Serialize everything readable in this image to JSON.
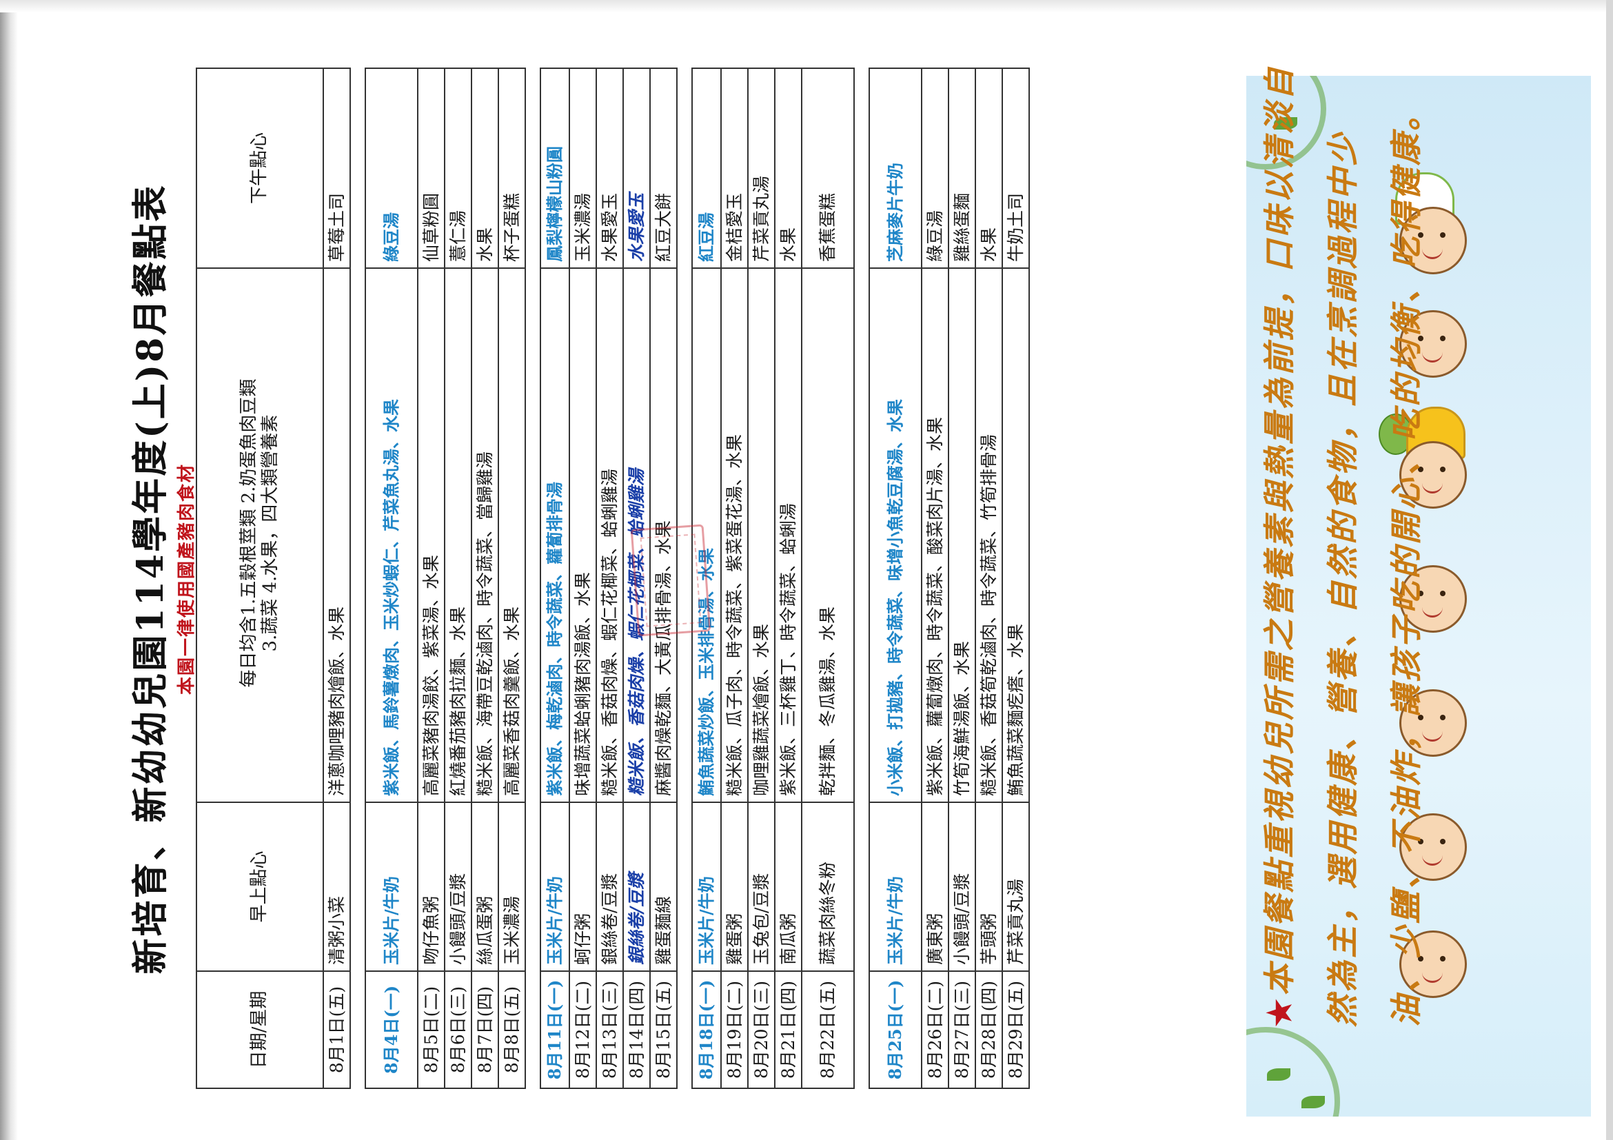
{
  "title": "新培育、新幼幼兒園114學年度(上)8月餐點表",
  "notice": "本園一律使用國產豬肉食材",
  "header": {
    "date_col": "日期/星期",
    "morning_col": "早上點心",
    "lunch_line1": "每日均含1.五穀根莖類 2.奶蛋魚肉豆類",
    "lunch_line2": "3.蔬菜 4.水果，四大類營養素",
    "afternoon_col": "下午點心"
  },
  "rows": [
    {
      "date": "8月1日(五)",
      "morning": "清粥小菜",
      "lunch": "洋蔥咖哩豬肉燴飯、水果",
      "afternoon": "草莓土司"
    },
    {
      "date": "8月4日(一)",
      "morning": "玉米片/牛奶",
      "lunch": "紫米飯、馬鈴薯燉肉、玉米炒蝦仁、芹菜魚丸湯、水果",
      "afternoon": "綠豆湯",
      "monday": true
    },
    {
      "date": "8月5日(二)",
      "morning": "吻仔魚粥",
      "lunch": "高麗菜豬肉湯餃、紫菜湯、水果",
      "afternoon": "仙草粉圓"
    },
    {
      "date": "8月6日(三)",
      "morning": "小饅頭/豆漿",
      "lunch": "紅燒番茄豬肉拉麵、水果",
      "afternoon": "薏仁湯"
    },
    {
      "date": "8月7日(四)",
      "morning": "絲瓜蛋粥",
      "lunch": "糙米飯、海帶豆乾滷肉、時令蔬菜、當歸雞湯",
      "afternoon": "水果"
    },
    {
      "date": "8月8日(五)",
      "morning": "玉米濃湯",
      "lunch": "高麗菜香菇肉羹飯、水果",
      "afternoon": "杯子蛋糕"
    },
    {
      "date": "8月11日(一)",
      "morning": "玉米片/牛奶",
      "lunch": "紫米飯、梅乾滷肉、時令蔬菜、蘿蔔排骨湯",
      "afternoon": "鳳梨檸檬山粉圓",
      "monday": true
    },
    {
      "date": "8月12日(二)",
      "morning": "蚵仔粥",
      "lunch": "味增蔬菜蛤蜊豬肉湯飯、水果",
      "afternoon": "玉米濃湯"
    },
    {
      "date": "8月13日(三)",
      "morning": "銀絲卷/豆漿",
      "lunch": "糙米飯、香菇肉燥、蝦仁花椰菜、蛤蜊雞湯",
      "afternoon": "水果愛玉"
    },
    {
      "date": "8月14日(四)",
      "morning": "銀絲卷/豆漿",
      "lunch": "糙米飯、香菇肉燥、蝦仁花椰菜、蛤蜊雞湯",
      "afternoon": "水果愛玉",
      "handwritten": true
    },
    {
      "date": "8月15日(五)",
      "morning": "雞蛋麵線",
      "lunch": "麻醬肉燥乾麵、大黃瓜排骨湯、水果",
      "afternoon": "紅豆大餅"
    },
    {
      "date": "8月18日(一)",
      "morning": "玉米片/牛奶",
      "lunch": "鮪魚蔬菜炒飯、玉米排骨湯、水果",
      "afternoon": "紅豆湯",
      "monday": true
    },
    {
      "date": "8月19日(二)",
      "morning": "雞蛋粥",
      "lunch": "糙米飯、瓜子肉、時令蔬菜、紫菜蛋花湯、水果",
      "afternoon": "金桔愛玉"
    },
    {
      "date": "8月20日(三)",
      "morning": "玉兔包/豆漿",
      "lunch": "咖哩雞蔬菜燴飯、水果",
      "afternoon": "芹菜貢丸湯"
    },
    {
      "date": "8月21日(四)",
      "morning": "南瓜粥",
      "lunch": "紫米飯、三杯雞丁、時令蔬菜、蛤蜊湯",
      "afternoon": "水果"
    },
    {
      "date": "8月22日(五)",
      "morning": "蔬菜肉絲冬粉",
      "lunch": "乾拌麵、冬瓜雞湯、水果",
      "afternoon": "香蕉蛋糕",
      "tall": true
    },
    {
      "date": "8月25日(一)",
      "morning": "玉米片/牛奶",
      "lunch": "小米飯、打拋豬、時令蔬菜、味增小魚乾豆腐湯、水果",
      "afternoon": "芝麻麥片牛奶",
      "monday": true
    },
    {
      "date": "8月26日(二)",
      "morning": "廣東粥",
      "lunch": "紫米飯、蘿蔔燉肉、時令蔬菜、酸菜肉片湯、水果",
      "afternoon": "綠豆湯"
    },
    {
      "date": "8月27日(三)",
      "morning": "小饅頭/豆漿",
      "lunch": "竹筍海鮮湯飯、水果",
      "afternoon": "雞絲蛋麵"
    },
    {
      "date": "8月28日(四)",
      "morning": "芋頭粥",
      "lunch": "糙米飯、香菇筍乾滷肉、時令蔬菜、竹筍排骨湯",
      "afternoon": "水果"
    },
    {
      "date": "8月29日(五)",
      "morning": "芹菜貢丸湯",
      "lunch": "鮪魚蔬菜麵疙瘩、水果",
      "afternoon": "牛奶土司"
    }
  ],
  "side_panel": {
    "star": "★",
    "text_lines": [
      "本園餐點重視幼兒所需之營養素與熱量為前提，口味以清淡自",
      "然為主，選用健康、營養、自然的食物，且在烹調過程中少",
      "油、少鹽、不油炸，讓孩子吃的開心、吃的均衡、吃得健康。"
    ]
  },
  "colors": {
    "monday_text": "#1f86c8",
    "notice": "#c0141c",
    "panel_text": "#c97a12",
    "panel_bg": "#cfe9f7",
    "handwriting": "#1a3fa8"
  }
}
